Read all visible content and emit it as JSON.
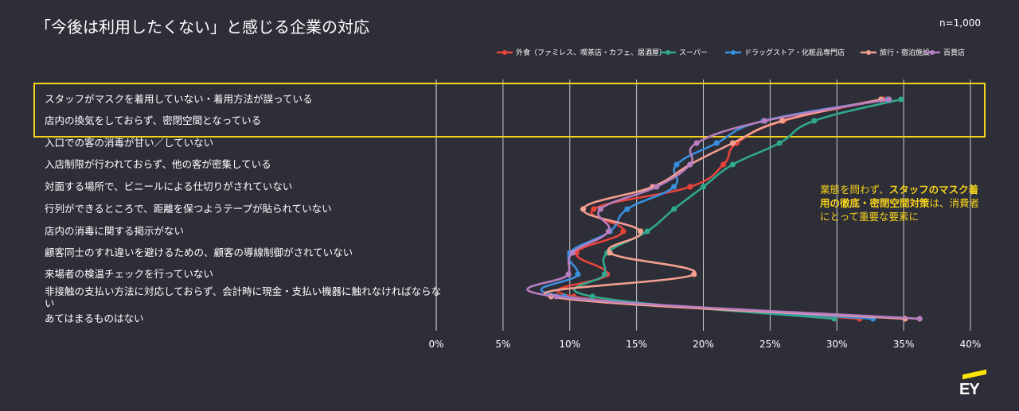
{
  "title": "「今後は利用したくない」と感じる企業の対応",
  "sample_size": "n=1,000",
  "annotation": {
    "part1": "業態を問わず、",
    "bold": "スタッフのマスク着用の徹底・密閉空間対策",
    "part2": "は、消費者にとって重要な要素に"
  },
  "logo": {
    "text": "EY",
    "icon": "ey-logo-icon"
  },
  "highlight_color": "#f5d21b",
  "chart_data": {
    "type": "line",
    "orientation": "horizontal",
    "title": "「今後は利用したくない」と感じる企業の対応",
    "xlabel": "",
    "ylabel": "",
    "xlim": [
      0,
      40
    ],
    "x_ticks": [
      "0%",
      "5%",
      "10%",
      "15%",
      "20%",
      "25%",
      "30%",
      "35%",
      "40%"
    ],
    "grid": "vertical",
    "legend_position": "top-right",
    "highlighted_categories": [
      0,
      1
    ],
    "categories": [
      "スタッフがマスクを着用していない・着用方法が誤っている",
      "店内の換気をしておらず、密閉空間となっている",
      "入口での客の消毒が甘い／していない",
      "入店制限が行われておらず、他の客が密集している",
      "対面する場所で、ビニールによる仕切りがされていない",
      "行列ができるところで、距離を保つようテープが貼られていない",
      "店内の消毒に関する掲示がない",
      "顧客同士のすれ違いを避けるための、顧客の導線制御がされていない",
      "来場者の検温チェックを行っていない",
      "非接触の支払い方法に対応しておらず、会計時に現金・支払い機器に触れなければならない",
      "あてはまるものはない"
    ],
    "series": [
      {
        "name": "外食（ファミレス、喫茶店・カフェ、居酒屋）",
        "color": "#e8443a",
        "values": [
          33.5,
          26.0,
          22.5,
          21.5,
          19.0,
          11.8,
          14.0,
          10.5,
          12.8,
          10.3,
          31.7
        ]
      },
      {
        "name": "スーパー",
        "color": "#2fa88e",
        "values": [
          34.8,
          28.3,
          25.7,
          22.2,
          20.0,
          17.8,
          15.8,
          12.8,
          12.6,
          11.7,
          29.8
        ]
      },
      {
        "name": "ドラッグストア・化粧品専門店",
        "color": "#3a8fdc",
        "values": [
          33.8,
          24.5,
          21.0,
          18.0,
          17.8,
          14.3,
          13.0,
          10.0,
          10.6,
          9.6,
          32.7
        ]
      },
      {
        "name": "旅行・宿泊施設",
        "color": "#f4a090",
        "values": [
          33.3,
          25.9,
          22.2,
          19.0,
          16.2,
          11.0,
          15.3,
          13.0,
          19.3,
          8.6,
          35.1
        ]
      },
      {
        "name": "百貨店",
        "color": "#b87ec0",
        "values": [
          33.9,
          24.6,
          19.5,
          19.0,
          16.5,
          12.3,
          12.9,
          10.2,
          9.9,
          9.0,
          36.2
        ]
      }
    ]
  }
}
